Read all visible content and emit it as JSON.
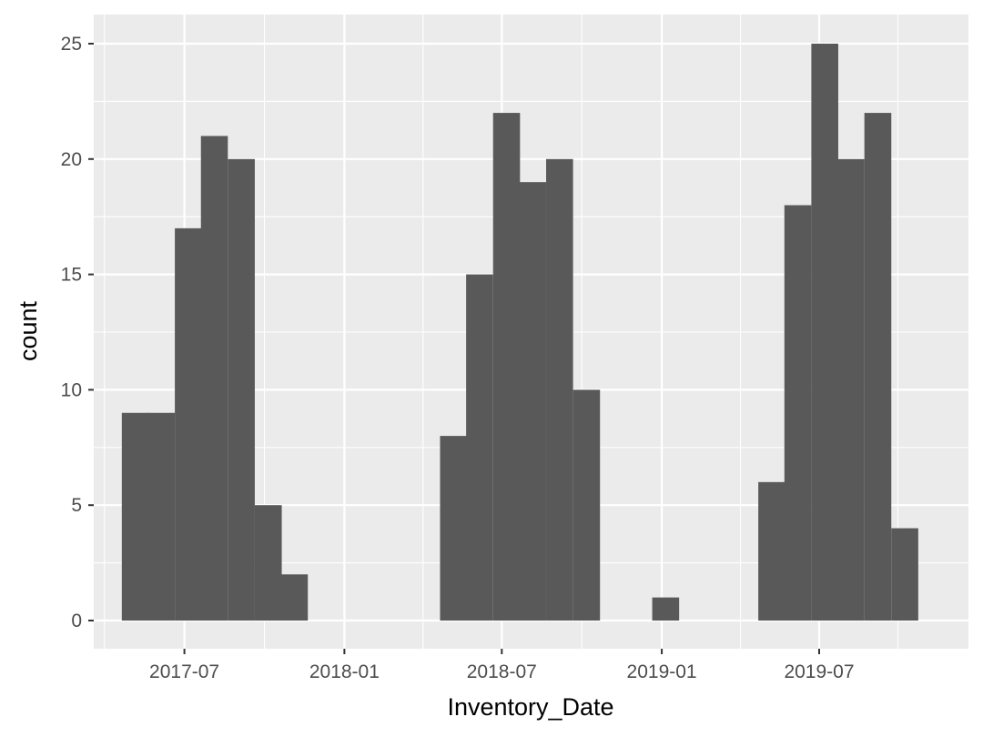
{
  "chart_data": {
    "type": "bar",
    "subtype": "histogram",
    "title": "",
    "xlabel": "Inventory_Date",
    "ylabel": "count",
    "x_axis_type": "date",
    "ylim": [
      0,
      25
    ],
    "y_ticks": [
      0,
      5,
      10,
      15,
      20,
      25
    ],
    "x_ticks": [
      "2017-07",
      "2018-01",
      "2018-07",
      "2019-01",
      "2019-07"
    ],
    "grid": true,
    "legend": "none",
    "colors": {
      "panel_bg": "#ebebeb",
      "grid": "#ffffff",
      "bar": "#595959",
      "tick_text": "#4d4d4d",
      "tick_mark": "#333333"
    },
    "bin_width_days": 30.33,
    "bins": [
      {
        "start": "2017-04-20",
        "count": 9
      },
      {
        "start": "2017-05-20",
        "count": 9
      },
      {
        "start": "2017-06-20",
        "count": 17
      },
      {
        "start": "2017-07-20",
        "count": 21
      },
      {
        "start": "2017-08-20",
        "count": 20
      },
      {
        "start": "2017-09-20",
        "count": 5
      },
      {
        "start": "2017-10-20",
        "count": 2
      },
      {
        "start": "2017-11-20",
        "count": 0
      },
      {
        "start": "2017-12-20",
        "count": 0
      },
      {
        "start": "2018-01-19",
        "count": 0
      },
      {
        "start": "2018-02-19",
        "count": 0
      },
      {
        "start": "2018-03-21",
        "count": 0
      },
      {
        "start": "2018-04-21",
        "count": 8
      },
      {
        "start": "2018-05-21",
        "count": 15
      },
      {
        "start": "2018-06-21",
        "count": 22
      },
      {
        "start": "2018-07-21",
        "count": 19
      },
      {
        "start": "2018-08-21",
        "count": 20
      },
      {
        "start": "2018-09-21",
        "count": 10
      },
      {
        "start": "2018-10-21",
        "count": 0
      },
      {
        "start": "2018-11-21",
        "count": 0
      },
      {
        "start": "2018-12-21",
        "count": 1
      },
      {
        "start": "2019-01-20",
        "count": 0
      },
      {
        "start": "2019-02-20",
        "count": 0
      },
      {
        "start": "2019-03-22",
        "count": 0
      },
      {
        "start": "2019-04-22",
        "count": 6
      },
      {
        "start": "2019-05-22",
        "count": 18
      },
      {
        "start": "2019-06-22",
        "count": 25
      },
      {
        "start": "2019-07-22",
        "count": 20
      },
      {
        "start": "2019-08-22",
        "count": 22
      },
      {
        "start": "2019-09-22",
        "count": 4
      }
    ]
  }
}
